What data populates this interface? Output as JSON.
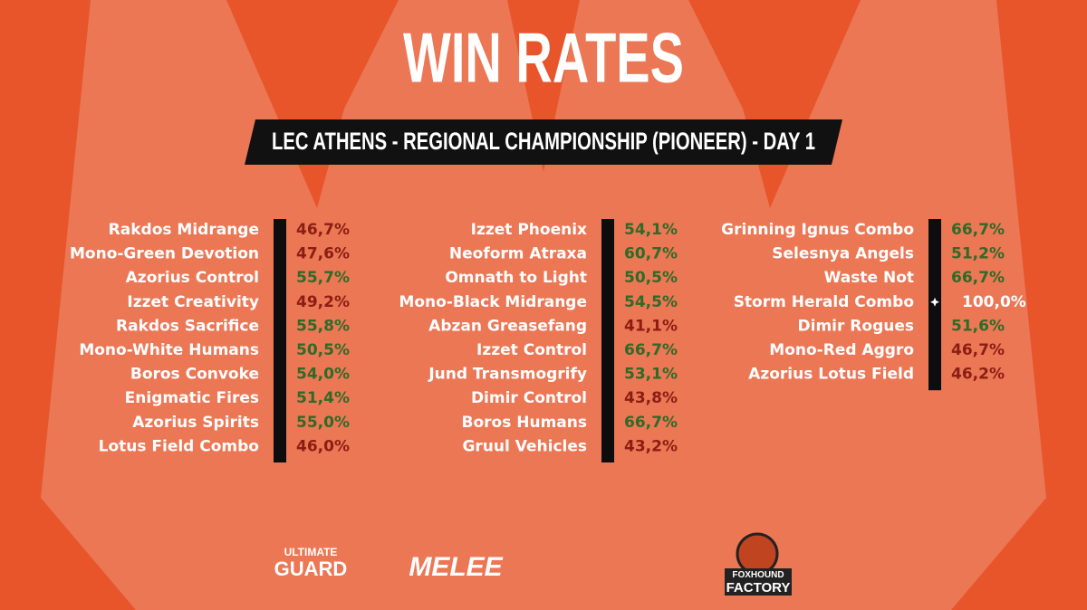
{
  "title": "WIN RATES",
  "subtitle": "LEC ATHENS - REGIONAL CHAMPIONSHIP (PIONEER) - DAY 1",
  "colors": {
    "high": "#2f6a26",
    "low": "#8b1d12",
    "top": "#ffffff"
  },
  "columns": [
    [
      {
        "name": "Rakdos Midrange",
        "rate": "46,7%",
        "tone": "low"
      },
      {
        "name": "Mono-Green Devotion",
        "rate": "47,6%",
        "tone": "low"
      },
      {
        "name": "Azorius Control",
        "rate": "55,7%",
        "tone": "high"
      },
      {
        "name": "Izzet Creativity",
        "rate": "49,2%",
        "tone": "low"
      },
      {
        "name": "Rakdos Sacrifice",
        "rate": "55,8%",
        "tone": "high"
      },
      {
        "name": "Mono-White Humans",
        "rate": "50,5%",
        "tone": "high"
      },
      {
        "name": "Boros Convoke",
        "rate": "54,0%",
        "tone": "high"
      },
      {
        "name": "Enigmatic Fires",
        "rate": "51,4%",
        "tone": "high"
      },
      {
        "name": "Azorius Spirits",
        "rate": "55,0%",
        "tone": "high"
      },
      {
        "name": "Lotus Field Combo",
        "rate": "46,0%",
        "tone": "low"
      }
    ],
    [
      {
        "name": "Izzet Phoenix",
        "rate": "54,1%",
        "tone": "high"
      },
      {
        "name": "Neoform Atraxa",
        "rate": "60,7%",
        "tone": "high"
      },
      {
        "name": "Omnath to Light",
        "rate": "50,5%",
        "tone": "high"
      },
      {
        "name": "Mono-Black Midrange",
        "rate": "54,5%",
        "tone": "high"
      },
      {
        "name": "Abzan Greasefang",
        "rate": "41,1%",
        "tone": "low"
      },
      {
        "name": "Izzet Control",
        "rate": "66,7%",
        "tone": "high"
      },
      {
        "name": "Jund Transmogrify",
        "rate": "53,1%",
        "tone": "high"
      },
      {
        "name": "Dimir Control",
        "rate": "43,8%",
        "tone": "low"
      },
      {
        "name": "Boros Humans",
        "rate": "66,7%",
        "tone": "high"
      },
      {
        "name": "Gruul Vehicles",
        "rate": "43,2%",
        "tone": "low"
      }
    ],
    [
      {
        "name": "Grinning Ignus Combo",
        "rate": "66,7%",
        "tone": "high"
      },
      {
        "name": "Selesnya Angels",
        "rate": "51,2%",
        "tone": "high"
      },
      {
        "name": "Waste Not",
        "rate": "66,7%",
        "tone": "high"
      },
      {
        "name": "Storm Herald Combo",
        "rate": "100,0%",
        "tone": "top"
      },
      {
        "name": "Dimir Rogues",
        "rate": "51,6%",
        "tone": "high"
      },
      {
        "name": "Mono-Red Aggro",
        "rate": "46,7%",
        "tone": "low"
      },
      {
        "name": "Azorius Lotus Field",
        "rate": "46,2%",
        "tone": "low"
      }
    ]
  ],
  "sponsors": {
    "ultimate": "ULTIMATE",
    "guard": "GUARD",
    "melee": "MELEE",
    "foxhound": "FOXHOUND",
    "factory": "FACTORY"
  }
}
